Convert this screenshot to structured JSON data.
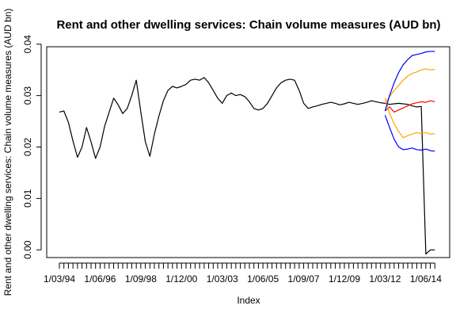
{
  "chart_data": {
    "type": "line",
    "title": "Rent and other dwelling services: Chain volume measures (AUD bn)",
    "xlabel": "Index",
    "ylabel": "Rent and other dwelling services: Chain volume measures (AUD bn)",
    "ylim": [
      -0.0015,
      0.0395
    ],
    "xlim": [
      1,
      85
    ],
    "y_ticks": [
      0.0,
      0.01,
      0.02,
      0.03,
      0.04
    ],
    "y_tick_labels": [
      "0.00",
      "0.01",
      "0.02",
      "0.03",
      "0.04"
    ],
    "x_ticks": [
      1,
      10,
      19,
      28,
      37,
      46,
      55,
      64,
      73,
      82
    ],
    "x_tick_labels": [
      "1/03/94",
      "1/06/96",
      "1/09/98",
      "1/12/00",
      "1/03/03",
      "1/06/05",
      "1/09/07",
      "1/12/09",
      "1/03/12",
      "1/06/14"
    ],
    "grid": false,
    "legend": "none",
    "series": [
      {
        "color": "#000000",
        "x": [
          1,
          2,
          3,
          4,
          5,
          6,
          7,
          8,
          9,
          10,
          11,
          12,
          13,
          14,
          15,
          16,
          17,
          18,
          19,
          20,
          21,
          22,
          23,
          24,
          25,
          26,
          27,
          28,
          29,
          30,
          31,
          32,
          33,
          34,
          35,
          36,
          37,
          38,
          39,
          40,
          41,
          42,
          43,
          44,
          45,
          46,
          47,
          48,
          49,
          50,
          51,
          52,
          53,
          54,
          55,
          56,
          57,
          58,
          59,
          60,
          61,
          62,
          63,
          64,
          65,
          66,
          67,
          68,
          69,
          70,
          71,
          72,
          73,
          74,
          75,
          76,
          77,
          78,
          79,
          80,
          81,
          82,
          83,
          84
        ],
        "values": [
          0.0268,
          0.027,
          0.0248,
          0.0212,
          0.018,
          0.02,
          0.0238,
          0.021,
          0.0178,
          0.02,
          0.024,
          0.0268,
          0.0295,
          0.0282,
          0.0265,
          0.0275,
          0.03,
          0.033,
          0.0268,
          0.021,
          0.0182,
          0.0225,
          0.026,
          0.029,
          0.031,
          0.0318,
          0.0315,
          0.0318,
          0.0322,
          0.033,
          0.0332,
          0.033,
          0.0335,
          0.0325,
          0.031,
          0.0295,
          0.0285,
          0.03,
          0.0305,
          0.03,
          0.0302,
          0.0298,
          0.0288,
          0.0275,
          0.0272,
          0.0275,
          0.0285,
          0.03,
          0.0315,
          0.0325,
          0.033,
          0.0332,
          0.033,
          0.031,
          0.0285,
          0.0275,
          0.0278,
          0.028,
          0.0283,
          0.0285,
          0.0287,
          0.0285,
          0.0282,
          0.0284,
          0.0287,
          0.0285,
          0.0283,
          0.0285,
          0.0287,
          0.029,
          0.0288,
          0.0286,
          0.0285,
          0.0283,
          0.0284,
          0.0285,
          0.0284,
          0.0283,
          0.028,
          0.0278,
          0.0279,
          -0.0008,
          0.0,
          0.0
        ]
      },
      {
        "color": "#ff0000",
        "x": [
          73,
          74,
          75,
          76,
          77,
          78,
          79,
          80,
          81,
          82,
          83,
          84
        ],
        "values": [
          0.027,
          0.0278,
          0.0268,
          0.0272,
          0.0276,
          0.028,
          0.0284,
          0.0286,
          0.0288,
          0.0287,
          0.029,
          0.0288
        ]
      },
      {
        "color": "#ffa500",
        "x": [
          73,
          74,
          75,
          76,
          77,
          78,
          79,
          80,
          81,
          82,
          83,
          84
        ],
        "values": [
          0.0295,
          0.0265,
          0.0245,
          0.023,
          0.0218,
          0.0222,
          0.0225,
          0.0228,
          0.0226,
          0.0228,
          0.0225,
          0.0226
        ]
      },
      {
        "color": "#ffa500",
        "x": [
          73,
          74,
          75,
          76,
          77,
          78,
          79,
          80,
          81,
          82,
          83,
          84
        ],
        "values": [
          0.0285,
          0.0298,
          0.031,
          0.032,
          0.033,
          0.0338,
          0.0343,
          0.0346,
          0.035,
          0.0352,
          0.035,
          0.0351
        ]
      },
      {
        "color": "#0000ff",
        "x": [
          73,
          74,
          75,
          76,
          77,
          78,
          79,
          80,
          81,
          82,
          83,
          84
        ],
        "values": [
          0.0262,
          0.0238,
          0.0215,
          0.02,
          0.0195,
          0.0196,
          0.0198,
          0.0195,
          0.0194,
          0.0196,
          0.0193,
          0.0192
        ]
      },
      {
        "color": "#0000ff",
        "x": [
          73,
          74,
          75,
          76,
          77,
          78,
          79,
          80,
          81,
          82,
          83,
          84
        ],
        "values": [
          0.027,
          0.03,
          0.0325,
          0.0345,
          0.036,
          0.037,
          0.0378,
          0.038,
          0.0382,
          0.0385,
          0.0386,
          0.0386
        ]
      }
    ]
  }
}
